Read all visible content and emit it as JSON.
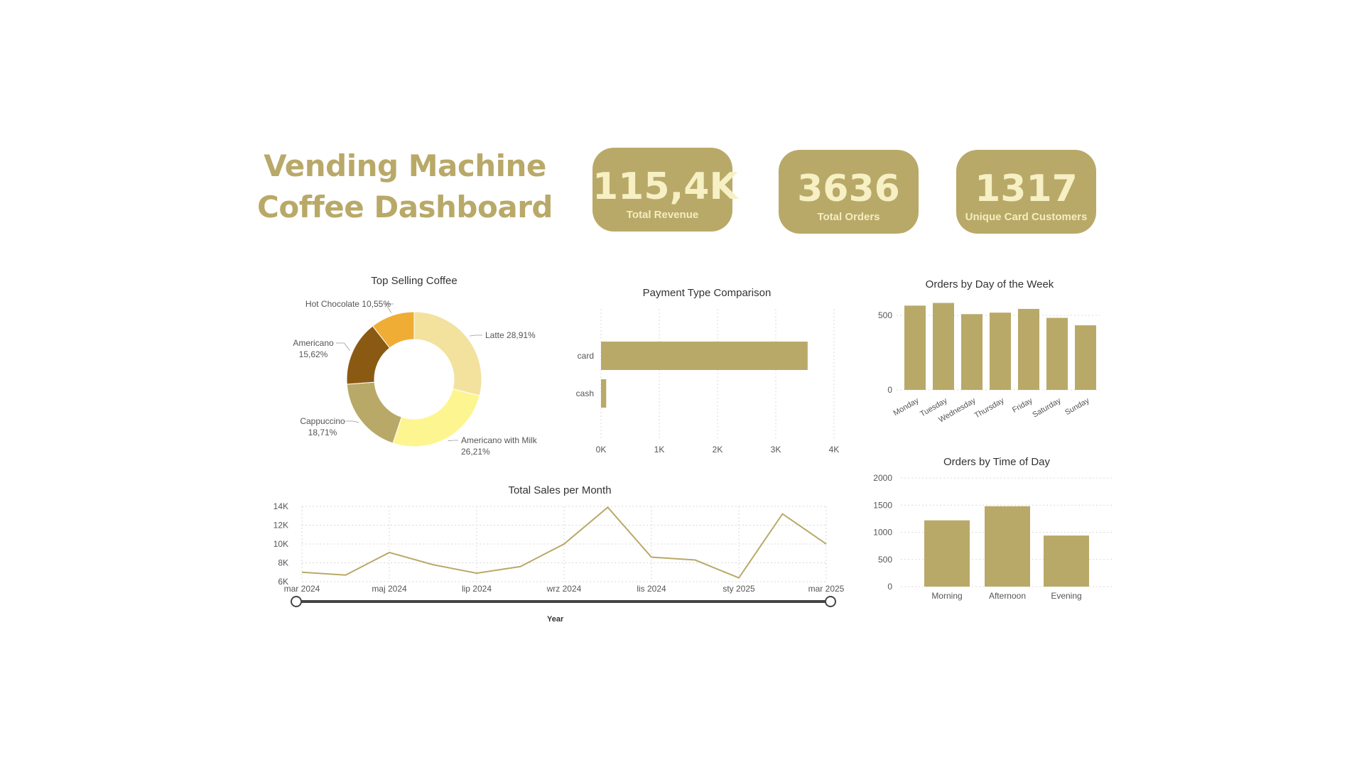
{
  "dashboard": {
    "title_line1": "Vending Machine",
    "title_line2": "Coffee Dashboard"
  },
  "kpis": [
    {
      "value": "115,4K",
      "label": "Total Revenue"
    },
    {
      "value": "3636",
      "label": "Total Orders"
    },
    {
      "value": "1317",
      "label": "Unique Card Customers"
    }
  ],
  "slider": {
    "label": "Year"
  },
  "colors": {
    "accent": "#b9a968",
    "kpi_text": "#f6f0c4"
  },
  "chart_data": [
    {
      "id": "top-selling",
      "type": "pie",
      "title": "Top Selling Coffee",
      "slices": [
        {
          "name": "Latte",
          "value": 28.91,
          "label": "Latte 28,91%",
          "color": "#f2e29e"
        },
        {
          "name": "Americano with Milk",
          "value": 26.21,
          "label_lines": [
            "Americano with Milk",
            "26,21%"
          ],
          "color": "#fdf690"
        },
        {
          "name": "Cappuccino",
          "value": 18.71,
          "label_lines": [
            "Cappuccino",
            "18,71%"
          ],
          "color": "#b9a968"
        },
        {
          "name": "Americano",
          "value": 15.62,
          "label_lines": [
            "Americano",
            "15,62%"
          ],
          "color": "#8b5a12"
        },
        {
          "name": "Hot Chocolate",
          "value": 10.55,
          "label": "Hot Chocolate 10,55%",
          "color": "#efad35"
        }
      ]
    },
    {
      "id": "payment-type",
      "type": "bar",
      "orientation": "horizontal",
      "title": "Payment Type Comparison",
      "categories": [
        "card",
        "cash"
      ],
      "values": [
        3547,
        89
      ],
      "xlim": [
        0,
        4000
      ],
      "ticks": [
        0,
        1000,
        2000,
        3000,
        4000
      ],
      "tick_labels": [
        "0K",
        "1K",
        "2K",
        "3K",
        "4K"
      ]
    },
    {
      "id": "day-of-week",
      "type": "bar",
      "title": "Orders by Day of the Week",
      "categories": [
        "Monday",
        "Tuesday",
        "Wednesday",
        "Thursday",
        "Friday",
        "Saturday",
        "Sunday"
      ],
      "values": [
        565,
        583,
        508,
        518,
        543,
        483,
        433
      ],
      "ylim": [
        0,
        600
      ],
      "ticks": [
        0,
        500
      ],
      "tick_labels": [
        "0",
        "500"
      ]
    },
    {
      "id": "time-of-day",
      "type": "bar",
      "title": "Orders by Time of Day",
      "categories": [
        "Morning",
        "Afternoon",
        "Evening"
      ],
      "values": [
        1220,
        1480,
        940
      ],
      "ylim": [
        0,
        2000
      ],
      "ticks": [
        0,
        500,
        1000,
        1500,
        2000
      ],
      "tick_labels": [
        "0",
        "500",
        "1000",
        "1500",
        "2000"
      ]
    },
    {
      "id": "sales-month",
      "type": "line",
      "title": "Total Sales per Month",
      "x": [
        "mar 2024",
        "kwi 2024",
        "maj 2024",
        "cze 2024",
        "lip 2024",
        "sie 2024",
        "wrz 2024",
        "paź 2024",
        "lis 2024",
        "gru 2024",
        "sty 2025",
        "lut 2025",
        "mar 2025"
      ],
      "x_tick_labels": [
        "mar 2024",
        "maj 2024",
        "lip 2024",
        "wrz 2024",
        "lis 2024",
        "sty 2025",
        "mar 2025"
      ],
      "x_tick_positions": [
        0,
        2,
        4,
        6,
        8,
        10,
        12
      ],
      "values": [
        7000,
        6700,
        9100,
        7800,
        6900,
        7600,
        10000,
        13900,
        8600,
        8300,
        6400,
        13200,
        10000
      ],
      "ylim": [
        6000,
        14000
      ],
      "ticks": [
        6000,
        8000,
        10000,
        12000,
        14000
      ],
      "tick_labels": [
        "6K",
        "8K",
        "10K",
        "12K",
        "14K"
      ]
    }
  ]
}
